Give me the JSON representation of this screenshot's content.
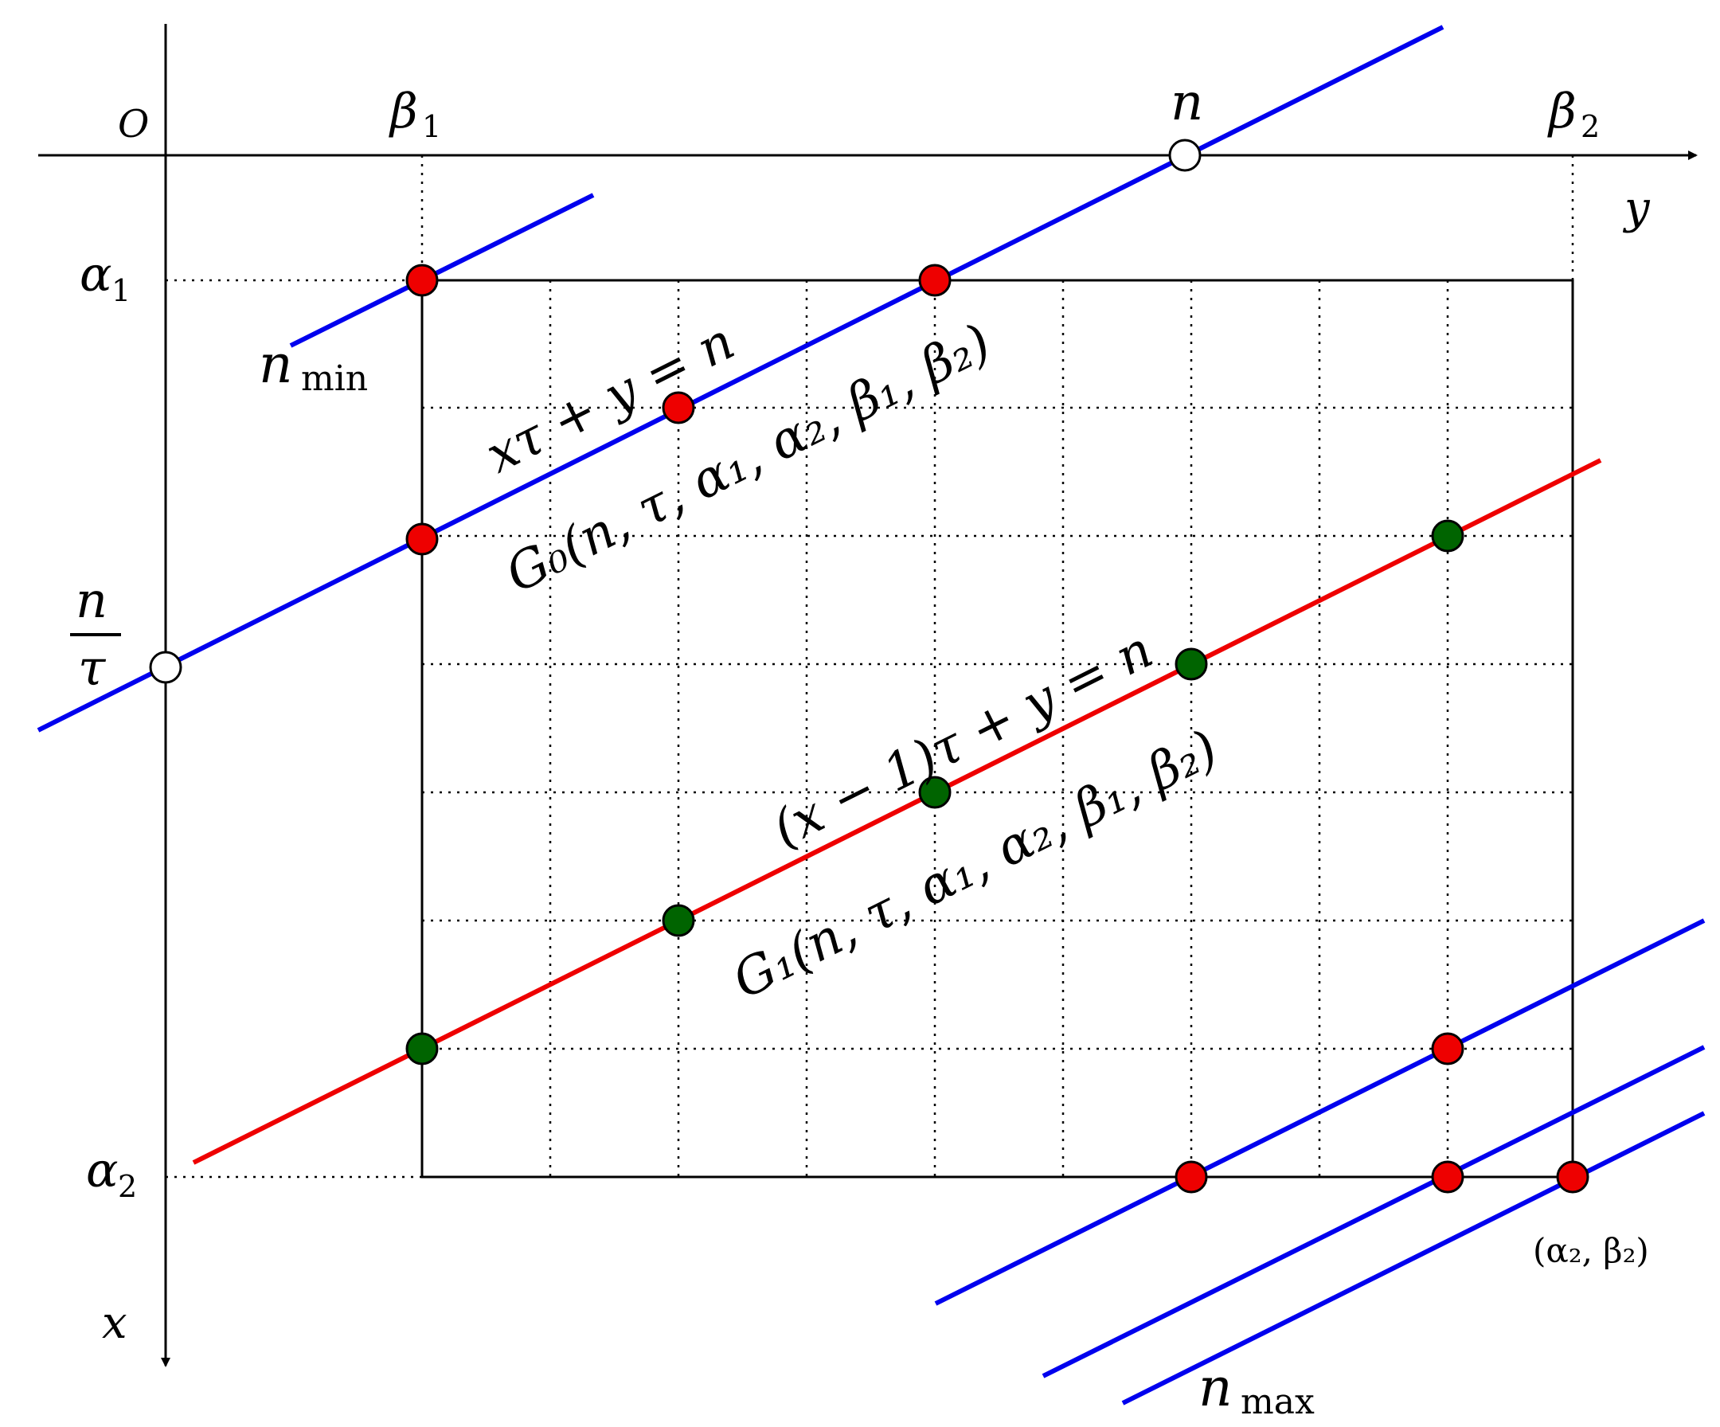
{
  "axes": {
    "origin": "O",
    "x_axis": "x",
    "y_axis": "y",
    "beta1": {
      "base": "β",
      "sub": "1"
    },
    "beta2": {
      "base": "β",
      "sub": "2"
    },
    "alpha1": {
      "base": "α",
      "sub": "1"
    },
    "alpha2": {
      "base": "α",
      "sub": "2"
    },
    "n_top": "n",
    "n_over_tau": {
      "num": "n",
      "den": "τ"
    }
  },
  "lines": {
    "line0_equation": "xτ + y = n",
    "line0_region": "G₀(n, τ, α₁, α₂, β₁, β₂)",
    "line1_equation": "(x − 1)τ + y = n",
    "line1_region": "G₁(n, τ, α₁, α₂, β₁, β₂)",
    "n_min": {
      "base": "n",
      "sub": "min"
    },
    "n_max": {
      "base": "n",
      "sub": "max"
    },
    "corner": "(α₂, β₂)"
  },
  "colors": {
    "blue_line": "#0000ee",
    "red_line": "#ee0000",
    "red_point": "#ee0000",
    "green_point": "#006400",
    "open_point": "#ffffff",
    "axis": "#000000"
  }
}
